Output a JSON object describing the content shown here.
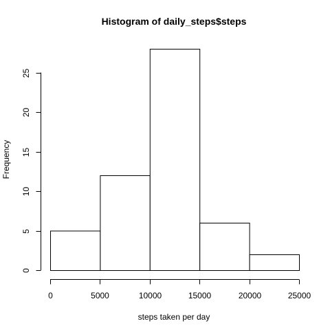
{
  "chart_data": {
    "type": "bar",
    "title": "Histogram of daily_steps$steps",
    "xlabel": "steps taken per day",
    "ylabel": "Frequency",
    "bins": [
      {
        "start": 0,
        "end": 5000,
        "count": 5
      },
      {
        "start": 5000,
        "end": 10000,
        "count": 12
      },
      {
        "start": 10000,
        "end": 15000,
        "count": 28
      },
      {
        "start": 15000,
        "end": 20000,
        "count": 6
      },
      {
        "start": 20000,
        "end": 25000,
        "count": 2
      }
    ],
    "xlim": [
      0,
      25000
    ],
    "ylim": [
      0,
      28
    ],
    "xticks": [
      0,
      5000,
      10000,
      15000,
      20000,
      25000
    ],
    "yticks": [
      0,
      5,
      10,
      15,
      20,
      25
    ],
    "grid": false,
    "colors": {
      "bar_fill": "#ffffff",
      "bar_stroke": "#000000"
    }
  }
}
